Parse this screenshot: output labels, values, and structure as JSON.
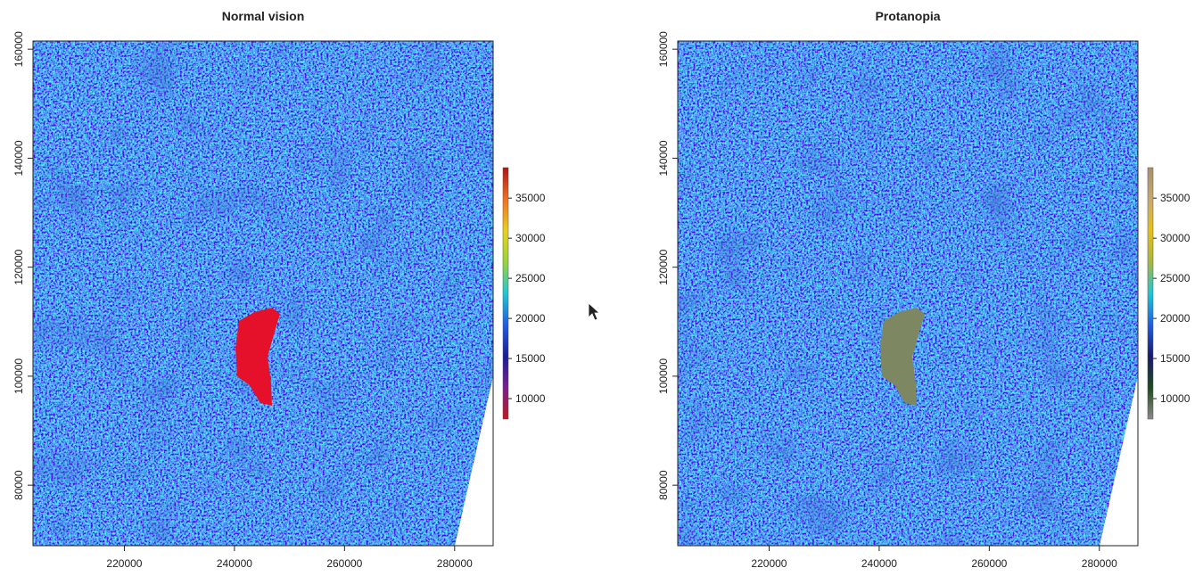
{
  "chart_data": [
    {
      "type": "raster",
      "title": "Normal vision",
      "xlim": [
        203400,
        287000
      ],
      "xticks": [
        220000,
        240000,
        260000,
        280000
      ],
      "ylim": [
        68900,
        161500
      ],
      "yticks": [
        80000,
        100000,
        120000,
        140000,
        160000
      ],
      "colorbar": {
        "lim": [
          7450,
          38800
        ],
        "ticks": [
          10000,
          15000,
          20000,
          25000,
          30000,
          35000
        ],
        "colors": [
          "#c4161c",
          "#7a1f8f",
          "#1c1c9a",
          "#1f5fe0",
          "#1fc7d6",
          "#9ad43a",
          "#e8d21c",
          "#f07020",
          "#b01414"
        ]
      }
    },
    {
      "type": "raster",
      "title": "Protanopia",
      "xlim": [
        203400,
        287000
      ],
      "xticks": [
        220000,
        240000,
        260000,
        280000
      ],
      "ylim": [
        68900,
        161500
      ],
      "yticks": [
        80000,
        100000,
        120000,
        140000,
        160000
      ],
      "colorbar": {
        "lim": [
          7450,
          38800
        ],
        "ticks": [
          10000,
          15000,
          20000,
          25000,
          30000,
          35000
        ],
        "colors": [
          "#8a8a8a",
          "#1e4a1e",
          "#1a1a6a",
          "#1f5fe0",
          "#1fc7d6",
          "#a8b640",
          "#e6bf1a",
          "#c8a870",
          "#a89070"
        ]
      }
    }
  ]
}
